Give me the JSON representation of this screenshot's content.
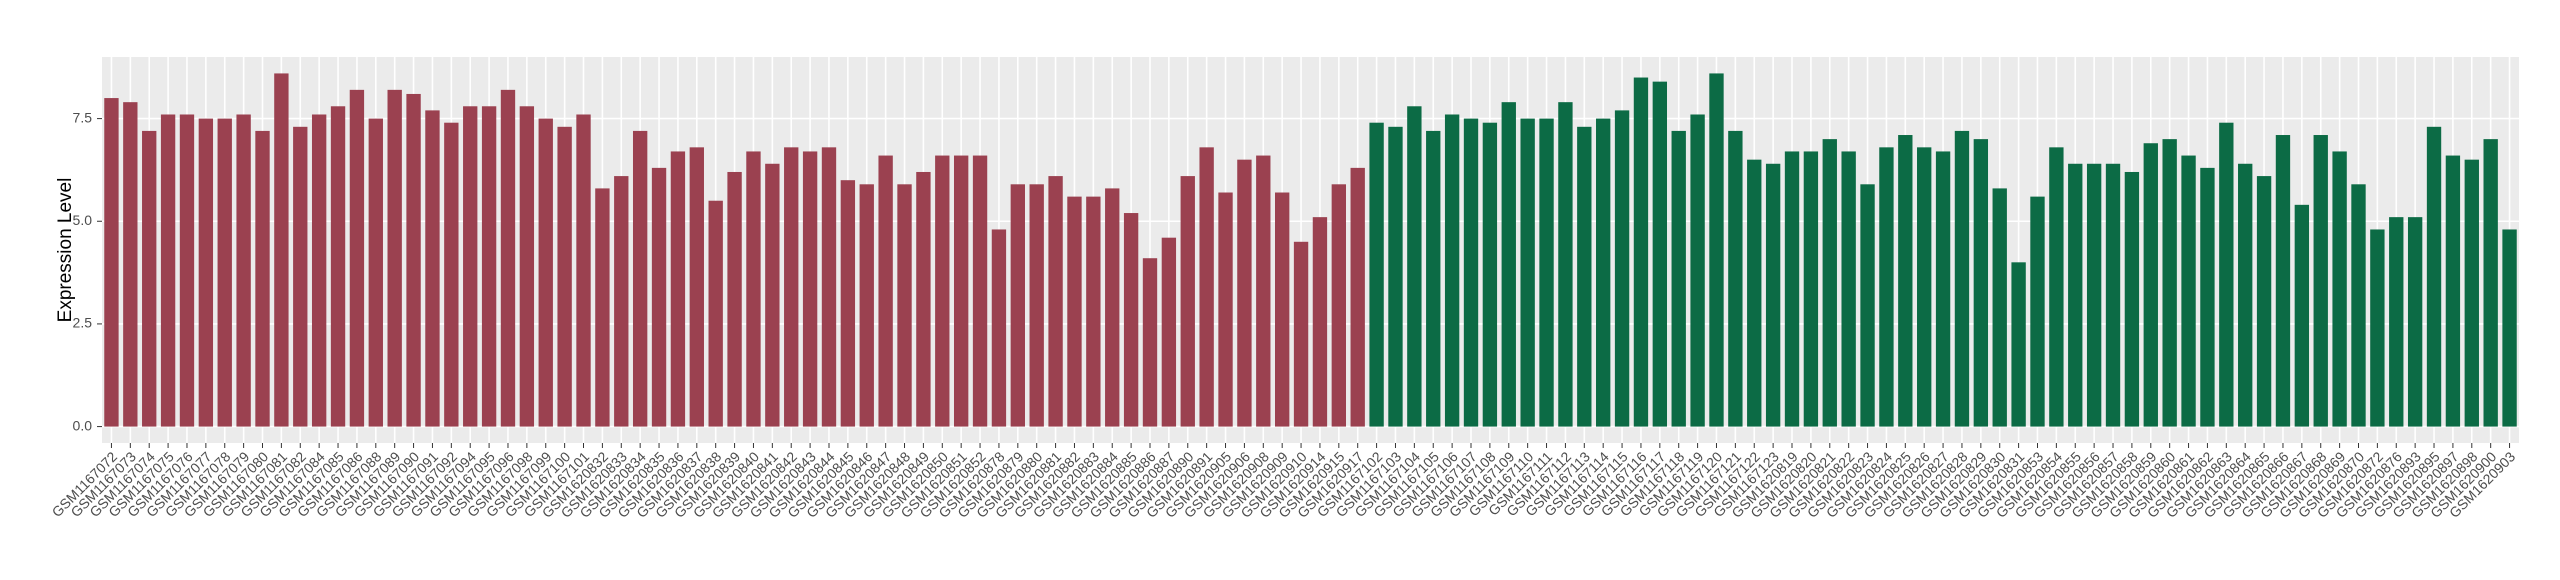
{
  "chart_data": {
    "type": "bar",
    "ylabel": "Expression Level",
    "categories": [
      "GSM1167072",
      "GSM1167073",
      "GSM1167074",
      "GSM1167075",
      "GSM1167076",
      "GSM1167077",
      "GSM1167078",
      "GSM1167079",
      "GSM1167080",
      "GSM1167081",
      "GSM1167082",
      "GSM1167084",
      "GSM1167085",
      "GSM1167086",
      "GSM1167088",
      "GSM1167089",
      "GSM1167090",
      "GSM1167091",
      "GSM1167092",
      "GSM1167094",
      "GSM1167095",
      "GSM1167096",
      "GSM1167098",
      "GSM1167099",
      "GSM1167100",
      "GSM1167101",
      "GSM1620832",
      "GSM1620833",
      "GSM1620834",
      "GSM1620835",
      "GSM1620836",
      "GSM1620837",
      "GSM1620838",
      "GSM1620839",
      "GSM1620840",
      "GSM1620841",
      "GSM1620842",
      "GSM1620843",
      "GSM1620844",
      "GSM1620845",
      "GSM1620846",
      "GSM1620847",
      "GSM1620848",
      "GSM1620849",
      "GSM1620850",
      "GSM1620851",
      "GSM1620852",
      "GSM1620878",
      "GSM1620879",
      "GSM1620880",
      "GSM1620881",
      "GSM1620882",
      "GSM1620883",
      "GSM1620884",
      "GSM1620885",
      "GSM1620886",
      "GSM1620887",
      "GSM1620890",
      "GSM1620891",
      "GSM1620905",
      "GSM1620906",
      "GSM1620908",
      "GSM1620909",
      "GSM1620910",
      "GSM1620914",
      "GSM1620915",
      "GSM1620917",
      "GSM1167102",
      "GSM1167103",
      "GSM1167104",
      "GSM1167105",
      "GSM1167106",
      "GSM1167107",
      "GSM1167108",
      "GSM1167109",
      "GSM1167110",
      "GSM1167111",
      "GSM1167112",
      "GSM1167113",
      "GSM1167114",
      "GSM1167115",
      "GSM1167116",
      "GSM1167117",
      "GSM1167118",
      "GSM1167119",
      "GSM1167120",
      "GSM1167121",
      "GSM1167122",
      "GSM1167123",
      "GSM1620819",
      "GSM1620820",
      "GSM1620821",
      "GSM1620822",
      "GSM1620823",
      "GSM1620824",
      "GSM1620825",
      "GSM1620826",
      "GSM1620827",
      "GSM1620828",
      "GSM1620829",
      "GSM1620830",
      "GSM1620831",
      "GSM1620853",
      "GSM1620854",
      "GSM1620855",
      "GSM1620856",
      "GSM1620857",
      "GSM1620858",
      "GSM1620859",
      "GSM1620860",
      "GSM1620861",
      "GSM1620862",
      "GSM1620863",
      "GSM1620864",
      "GSM1620865",
      "GSM1620866",
      "GSM1620867",
      "GSM1620868",
      "GSM1620869",
      "GSM1620870",
      "GSM1620872",
      "GSM1620876",
      "GSM1620893",
      "GSM1620895",
      "GSM1620897",
      "GSM1620898",
      "GSM1620900",
      "GSM1620903"
    ],
    "values": [
      8.0,
      7.9,
      7.2,
      7.6,
      7.6,
      7.5,
      7.5,
      7.6,
      7.2,
      8.6,
      7.3,
      7.6,
      7.8,
      8.2,
      7.5,
      8.2,
      8.1,
      7.7,
      7.4,
      7.8,
      7.8,
      8.2,
      7.8,
      7.5,
      7.3,
      7.6,
      5.8,
      6.1,
      7.2,
      6.3,
      6.7,
      6.8,
      5.5,
      6.2,
      6.7,
      6.4,
      6.8,
      6.7,
      6.8,
      6.0,
      5.9,
      6.6,
      5.9,
      6.2,
      6.6,
      6.6,
      6.6,
      4.8,
      5.9,
      5.9,
      6.1,
      5.6,
      5.6,
      5.8,
      5.2,
      4.1,
      4.6,
      6.1,
      6.8,
      5.7,
      6.5,
      6.6,
      5.7,
      4.5,
      5.1,
      5.9,
      6.3,
      7.4,
      7.3,
      7.8,
      7.2,
      7.6,
      7.5,
      7.4,
      7.9,
      7.5,
      7.5,
      7.9,
      7.3,
      7.5,
      7.7,
      8.5,
      8.4,
      7.2,
      7.6,
      8.6,
      7.2,
      6.5,
      6.4,
      6.7,
      6.7,
      7.0,
      6.7,
      5.9,
      6.8,
      7.1,
      6.8,
      6.7,
      7.2,
      7.0,
      5.8,
      4.0,
      5.6,
      6.8,
      6.4,
      6.4,
      6.4,
      6.2,
      6.9,
      7.0,
      6.6,
      6.3,
      7.4,
      6.4,
      6.1,
      7.1,
      5.4,
      7.1,
      6.7,
      5.9,
      4.8,
      5.1,
      5.1,
      7.3,
      6.6,
      6.5,
      7.0,
      4.8
    ],
    "colors": [
      "#9b4150",
      "#9b4150",
      "#9b4150",
      "#9b4150",
      "#9b4150",
      "#9b4150",
      "#9b4150",
      "#9b4150",
      "#9b4150",
      "#9b4150",
      "#9b4150",
      "#9b4150",
      "#9b4150",
      "#9b4150",
      "#9b4150",
      "#9b4150",
      "#9b4150",
      "#9b4150",
      "#9b4150",
      "#9b4150",
      "#9b4150",
      "#9b4150",
      "#9b4150",
      "#9b4150",
      "#9b4150",
      "#9b4150",
      "#9b4150",
      "#9b4150",
      "#9b4150",
      "#9b4150",
      "#9b4150",
      "#9b4150",
      "#9b4150",
      "#9b4150",
      "#9b4150",
      "#9b4150",
      "#9b4150",
      "#9b4150",
      "#9b4150",
      "#9b4150",
      "#9b4150",
      "#9b4150",
      "#9b4150",
      "#9b4150",
      "#9b4150",
      "#9b4150",
      "#9b4150",
      "#9b4150",
      "#9b4150",
      "#9b4150",
      "#9b4150",
      "#9b4150",
      "#9b4150",
      "#9b4150",
      "#9b4150",
      "#9b4150",
      "#9b4150",
      "#9b4150",
      "#9b4150",
      "#9b4150",
      "#9b4150",
      "#9b4150",
      "#9b4150",
      "#9b4150",
      "#9b4150",
      "#9b4150",
      "#9b4150",
      "#0c6b45",
      "#0c6b45",
      "#0c6b45",
      "#0c6b45",
      "#0c6b45",
      "#0c6b45",
      "#0c6b45",
      "#0c6b45",
      "#0c6b45",
      "#0c6b45",
      "#0c6b45",
      "#0c6b45",
      "#0c6b45",
      "#0c6b45",
      "#0c6b45",
      "#0c6b45",
      "#0c6b45",
      "#0c6b45",
      "#0c6b45",
      "#0c6b45",
      "#0c6b45",
      "#0c6b45",
      "#0c6b45",
      "#0c6b45",
      "#0c6b45",
      "#0c6b45",
      "#0c6b45",
      "#0c6b45",
      "#0c6b45",
      "#0c6b45",
      "#0c6b45",
      "#0c6b45",
      "#0c6b45",
      "#0c6b45",
      "#0c6b45",
      "#0c6b45",
      "#0c6b45",
      "#0c6b45",
      "#0c6b45",
      "#0c6b45",
      "#0c6b45",
      "#0c6b45",
      "#0c6b45",
      "#0c6b45",
      "#0c6b45",
      "#0c6b45",
      "#0c6b45",
      "#0c6b45",
      "#0c6b45",
      "#0c6b45",
      "#0c6b45",
      "#0c6b45",
      "#0c6b45",
      "#0c6b45",
      "#0c6b45",
      "#0c6b45",
      "#0c6b45",
      "#0c6b45",
      "#0c6b45",
      "#0c6b45",
      "#0c6b45",
      "#0c6b45",
      "#0c6b45"
    ],
    "ylim": [
      -0.4,
      9.0
    ],
    "yticks": [
      {
        "value": 0,
        "label": "0.0"
      },
      2.5,
      {
        "value": 5,
        "label": "5.0"
      },
      7.5
    ],
    "grid": true
  }
}
